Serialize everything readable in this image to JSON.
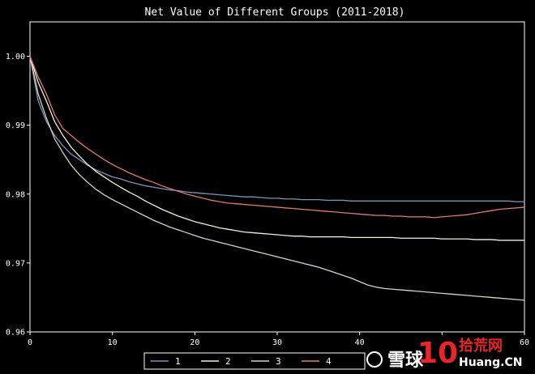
{
  "chart_data": {
    "type": "line",
    "title": "Net Value of Different Groups (2011-2018)",
    "xlim": [
      0,
      60
    ],
    "ylim": [
      0.96,
      1.005
    ],
    "x_ticks": [
      0,
      10,
      20,
      30,
      40,
      50,
      60
    ],
    "x_tick_labels": [
      "0",
      "10",
      "20",
      "30",
      "40",
      "",
      "60"
    ],
    "y_ticks": [
      0.96,
      0.97,
      0.98,
      0.99,
      1.0
    ],
    "y_tick_labels": [
      "0.96",
      "0.97",
      "0.98",
      "0.99",
      "1.00"
    ],
    "legend_position": "bottom-center",
    "series": [
      {
        "name": "1",
        "color": "#7f93b8",
        "values": [
          1.0,
          0.9935,
          0.9905,
          0.9885,
          0.987,
          0.9858,
          0.985,
          0.9842,
          0.9835,
          0.983,
          0.9825,
          0.9822,
          0.9818,
          0.9815,
          0.9812,
          0.981,
          0.9808,
          0.9806,
          0.9805,
          0.9803,
          0.9802,
          0.9801,
          0.98,
          0.9799,
          0.9798,
          0.9797,
          0.9796,
          0.9796,
          0.9795,
          0.9794,
          0.9794,
          0.9793,
          0.9793,
          0.9792,
          0.9792,
          0.9792,
          0.9791,
          0.9791,
          0.9791,
          0.979,
          0.979,
          0.979,
          0.979,
          0.979,
          0.979,
          0.979,
          0.979,
          0.979,
          0.979,
          0.979,
          0.979,
          0.979,
          0.979,
          0.979,
          0.979,
          0.979,
          0.979,
          0.979,
          0.979,
          0.9789,
          0.9789
        ]
      },
      {
        "name": "2",
        "color": "#f2f0d6",
        "values": [
          1.0,
          0.9962,
          0.9935,
          0.9905,
          0.9885,
          0.9868,
          0.9855,
          0.9843,
          0.9833,
          0.9825,
          0.9817,
          0.981,
          0.9803,
          0.9797,
          0.979,
          0.9784,
          0.9778,
          0.9773,
          0.9768,
          0.9764,
          0.976,
          0.9757,
          0.9754,
          0.9751,
          0.9749,
          0.9747,
          0.9745,
          0.9744,
          0.9743,
          0.9742,
          0.9741,
          0.974,
          0.9739,
          0.9739,
          0.9738,
          0.9738,
          0.9738,
          0.9738,
          0.9738,
          0.9737,
          0.9737,
          0.9737,
          0.9737,
          0.9737,
          0.9737,
          0.9736,
          0.9736,
          0.9736,
          0.9736,
          0.9736,
          0.9735,
          0.9735,
          0.9735,
          0.9735,
          0.9734,
          0.9734,
          0.9734,
          0.9733,
          0.9733,
          0.9733,
          0.9733
        ]
      },
      {
        "name": "3",
        "color": "#cfd6bf",
        "values": [
          1.0,
          0.9945,
          0.991,
          0.988,
          0.986,
          0.9842,
          0.9828,
          0.9817,
          0.9807,
          0.9799,
          0.9792,
          0.9786,
          0.978,
          0.9774,
          0.9768,
          0.9762,
          0.9757,
          0.9752,
          0.9748,
          0.9744,
          0.974,
          0.9736,
          0.9733,
          0.973,
          0.9727,
          0.9724,
          0.9721,
          0.9718,
          0.9715,
          0.9712,
          0.9709,
          0.9706,
          0.9703,
          0.97,
          0.9697,
          0.9694,
          0.969,
          0.9686,
          0.9682,
          0.9678,
          0.9673,
          0.9668,
          0.9665,
          0.9663,
          0.9662,
          0.9661,
          0.966,
          0.9659,
          0.9658,
          0.9657,
          0.9656,
          0.9655,
          0.9654,
          0.9653,
          0.9652,
          0.9651,
          0.965,
          0.9649,
          0.9648,
          0.9647,
          0.9646
        ]
      },
      {
        "name": "4",
        "color": "#e07a6e",
        "values": [
          1.0,
          0.997,
          0.9945,
          0.9915,
          0.9895,
          0.9885,
          0.9875,
          0.9866,
          0.9858,
          0.985,
          0.9843,
          0.9837,
          0.9831,
          0.9826,
          0.9821,
          0.9817,
          0.9812,
          0.9808,
          0.9804,
          0.98,
          0.9797,
          0.9794,
          0.9791,
          0.9789,
          0.9787,
          0.9786,
          0.9785,
          0.9784,
          0.9783,
          0.9782,
          0.9781,
          0.978,
          0.9779,
          0.9778,
          0.9777,
          0.9776,
          0.9775,
          0.9774,
          0.9773,
          0.9772,
          0.9771,
          0.977,
          0.9769,
          0.9769,
          0.9768,
          0.9768,
          0.9767,
          0.9767,
          0.9767,
          0.9766,
          0.9767,
          0.9768,
          0.9769,
          0.977,
          0.9772,
          0.9774,
          0.9776,
          0.9778,
          0.9779,
          0.978,
          0.9781
        ]
      }
    ]
  },
  "watermark": {
    "text_a": "雪球",
    "text_b": "10",
    "text_c": "拾荒网",
    "text_d": "Huang.CN"
  }
}
